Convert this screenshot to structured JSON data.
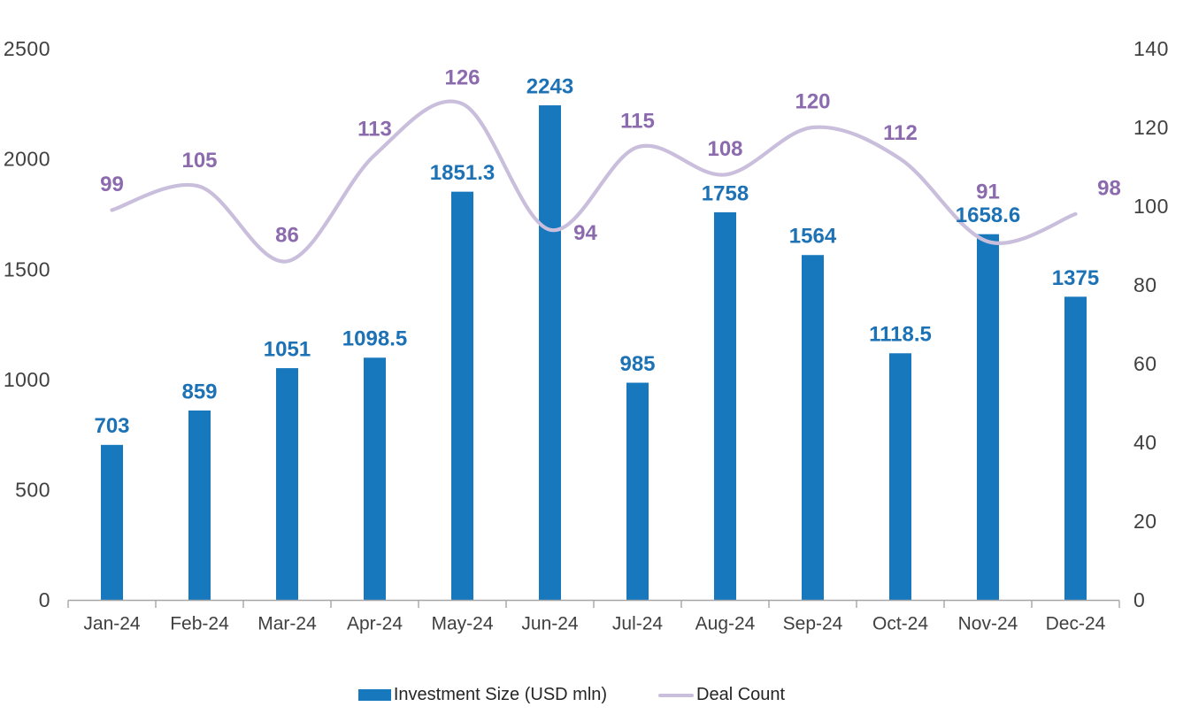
{
  "chart_data": {
    "type": "combo",
    "title": "",
    "categories": [
      "Jan-24",
      "Feb-24",
      "Mar-24",
      "Apr-24",
      "May-24",
      "Jun-24",
      "Jul-24",
      "Aug-24",
      "Sep-24",
      "Oct-24",
      "Nov-24",
      "Dec-24"
    ],
    "series": [
      {
        "name": "Investment Size (USD mln)",
        "type": "bar",
        "axis": "left",
        "color": "#1878BE",
        "label_color": "#1C72B5",
        "values": [
          703,
          859,
          1051,
          1098.5,
          1851.3,
          2243,
          985,
          1758,
          1564,
          1118.5,
          1658.6,
          1375
        ]
      },
      {
        "name": "Deal Count",
        "type": "line",
        "axis": "right",
        "color": "#C9BEDB",
        "label_color": "#8B6BAE",
        "values": [
          99,
          105,
          86,
          113,
          126,
          94,
          115,
          108,
          120,
          112,
          91,
          98
        ]
      }
    ],
    "left_axis": {
      "min": 0,
      "max": 2500,
      "ticks": [
        0,
        500,
        1000,
        1500,
        2000,
        2500
      ]
    },
    "right_axis": {
      "min": 0,
      "max": 140,
      "ticks": [
        0,
        20,
        40,
        60,
        80,
        100,
        120,
        140
      ]
    },
    "axis_text_color": "#404040",
    "axis_line_color": "#A6A6A6",
    "grid": false,
    "legend_position": "bottom",
    "data_labels": true,
    "line_smooth": true
  }
}
